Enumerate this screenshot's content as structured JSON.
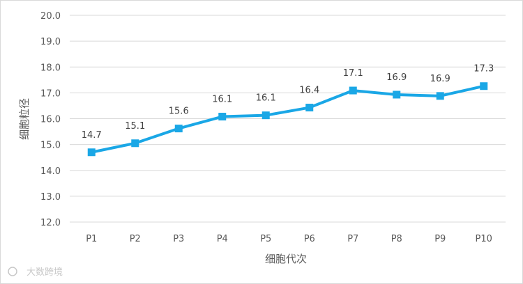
{
  "chart_data": {
    "type": "line",
    "categories": [
      "P1",
      "P2",
      "P3",
      "P4",
      "P5",
      "P6",
      "P7",
      "P8",
      "P9",
      "P10"
    ],
    "series": [
      {
        "values": [
          14.7,
          15.05,
          15.62,
          16.08,
          16.13,
          16.43,
          17.09,
          16.93,
          16.88,
          17.26
        ],
        "labels": [
          "14.7",
          "15.1",
          "15.6",
          "16.1",
          "16.1",
          "16.4",
          "17.1",
          "16.9",
          "16.9",
          "17.3"
        ]
      }
    ],
    "ylim": [
      12.0,
      20.0
    ],
    "yticks": [
      "12.0",
      "13.0",
      "14.0",
      "15.0",
      "16.0",
      "17.0",
      "18.0",
      "19.0",
      "20.0"
    ],
    "xlabel": "细胞代次",
    "ylabel": "细胞粒径",
    "grid": true,
    "legend": "none",
    "colors": {
      "line": "#1aa7e6",
      "marker": "#1aa7e6",
      "grid": "#d9d9d9"
    }
  },
  "watermark": {
    "text": "大数跨境"
  }
}
